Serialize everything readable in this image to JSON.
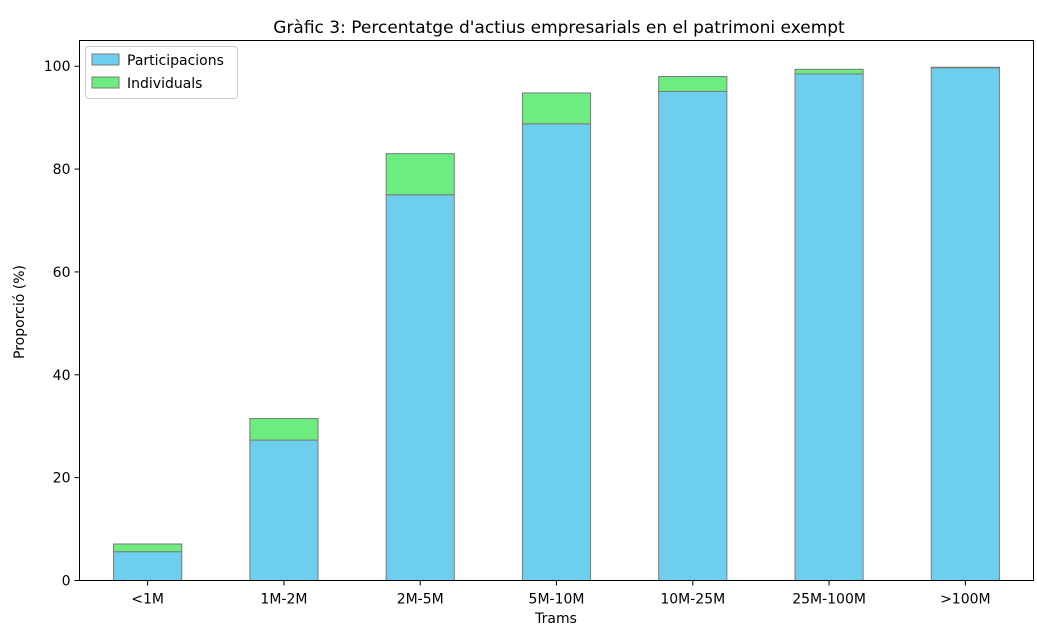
{
  "chart_data": {
    "type": "bar",
    "stacked": true,
    "title": "Gràfic 3: Percentatge d'actius empresarials en el patrimoni exempt",
    "xlabel": "Trams",
    "ylabel": "Proporció (%)",
    "categories": [
      "<1M",
      "1M-2M",
      "2M-5M",
      "5M-10M",
      "10M-25M",
      "25M-100M",
      ">100M"
    ],
    "series": [
      {
        "name": "Participacions",
        "color": "#6dcfed",
        "values": [
          5.6,
          27.3,
          75.0,
          88.8,
          95.1,
          98.5,
          99.7
        ]
      },
      {
        "name": "Individuals",
        "color": "#6ded7f",
        "values": [
          1.5,
          4.2,
          8.0,
          6.0,
          2.9,
          0.9,
          0.1
        ]
      }
    ],
    "ylim": [
      0,
      105
    ],
    "yticks": [
      0,
      20,
      40,
      60,
      80,
      100
    ],
    "grid": false,
    "legend_position": "top-left",
    "bar_edge_color": "#7a7a7a"
  }
}
